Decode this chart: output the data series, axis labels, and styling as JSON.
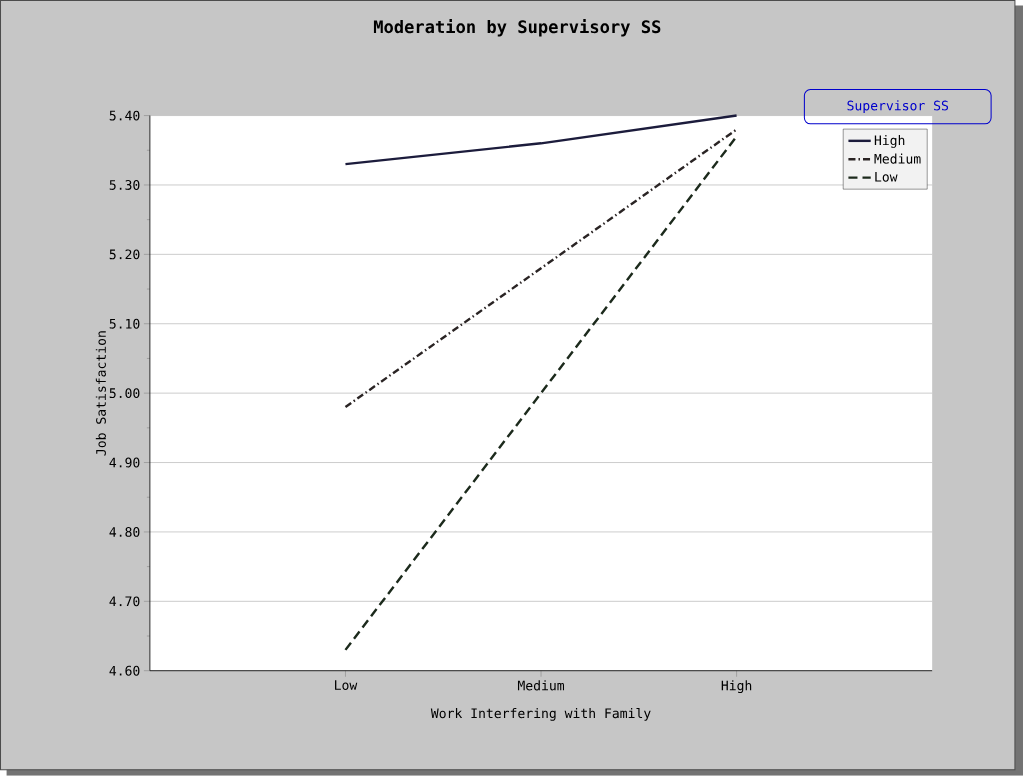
{
  "chart_data": {
    "type": "line",
    "title": "Moderation by Supervisory SS",
    "xlabel": "Work Interfering with Family",
    "ylabel": "Job Satisfaction",
    "legend_title": "Supervisor SS",
    "categories": [
      "Low",
      "Medium",
      "High"
    ],
    "series": [
      {
        "name": "High",
        "color": "#1c1c3c",
        "line_style": "solid",
        "values": [
          5.33,
          5.36,
          5.4
        ]
      },
      {
        "name": "Medium",
        "color": "#2a2424",
        "line_style": "dashdot",
        "values": [
          4.98,
          5.18,
          5.38
        ]
      },
      {
        "name": "Low",
        "color": "#1c2a1c",
        "line_style": "dashed",
        "values": [
          4.63,
          5.0,
          5.37
        ]
      }
    ],
    "ylim": [
      4.6,
      5.4
    ],
    "yticks": [
      {
        "value": 4.6,
        "label": "4.60"
      },
      {
        "value": 4.7,
        "label": "4.70"
      },
      {
        "value": 4.8,
        "label": "4.80"
      },
      {
        "value": 4.9,
        "label": "4.90"
      },
      {
        "value": 5.0,
        "label": "5.00"
      },
      {
        "value": 5.1,
        "label": "5.10"
      },
      {
        "value": 5.2,
        "label": "5.20"
      },
      {
        "value": 5.3,
        "label": "5.30"
      },
      {
        "value": 5.4,
        "label": "5.40"
      }
    ],
    "grid": "y",
    "legend": "top right",
    "marker": "none"
  }
}
